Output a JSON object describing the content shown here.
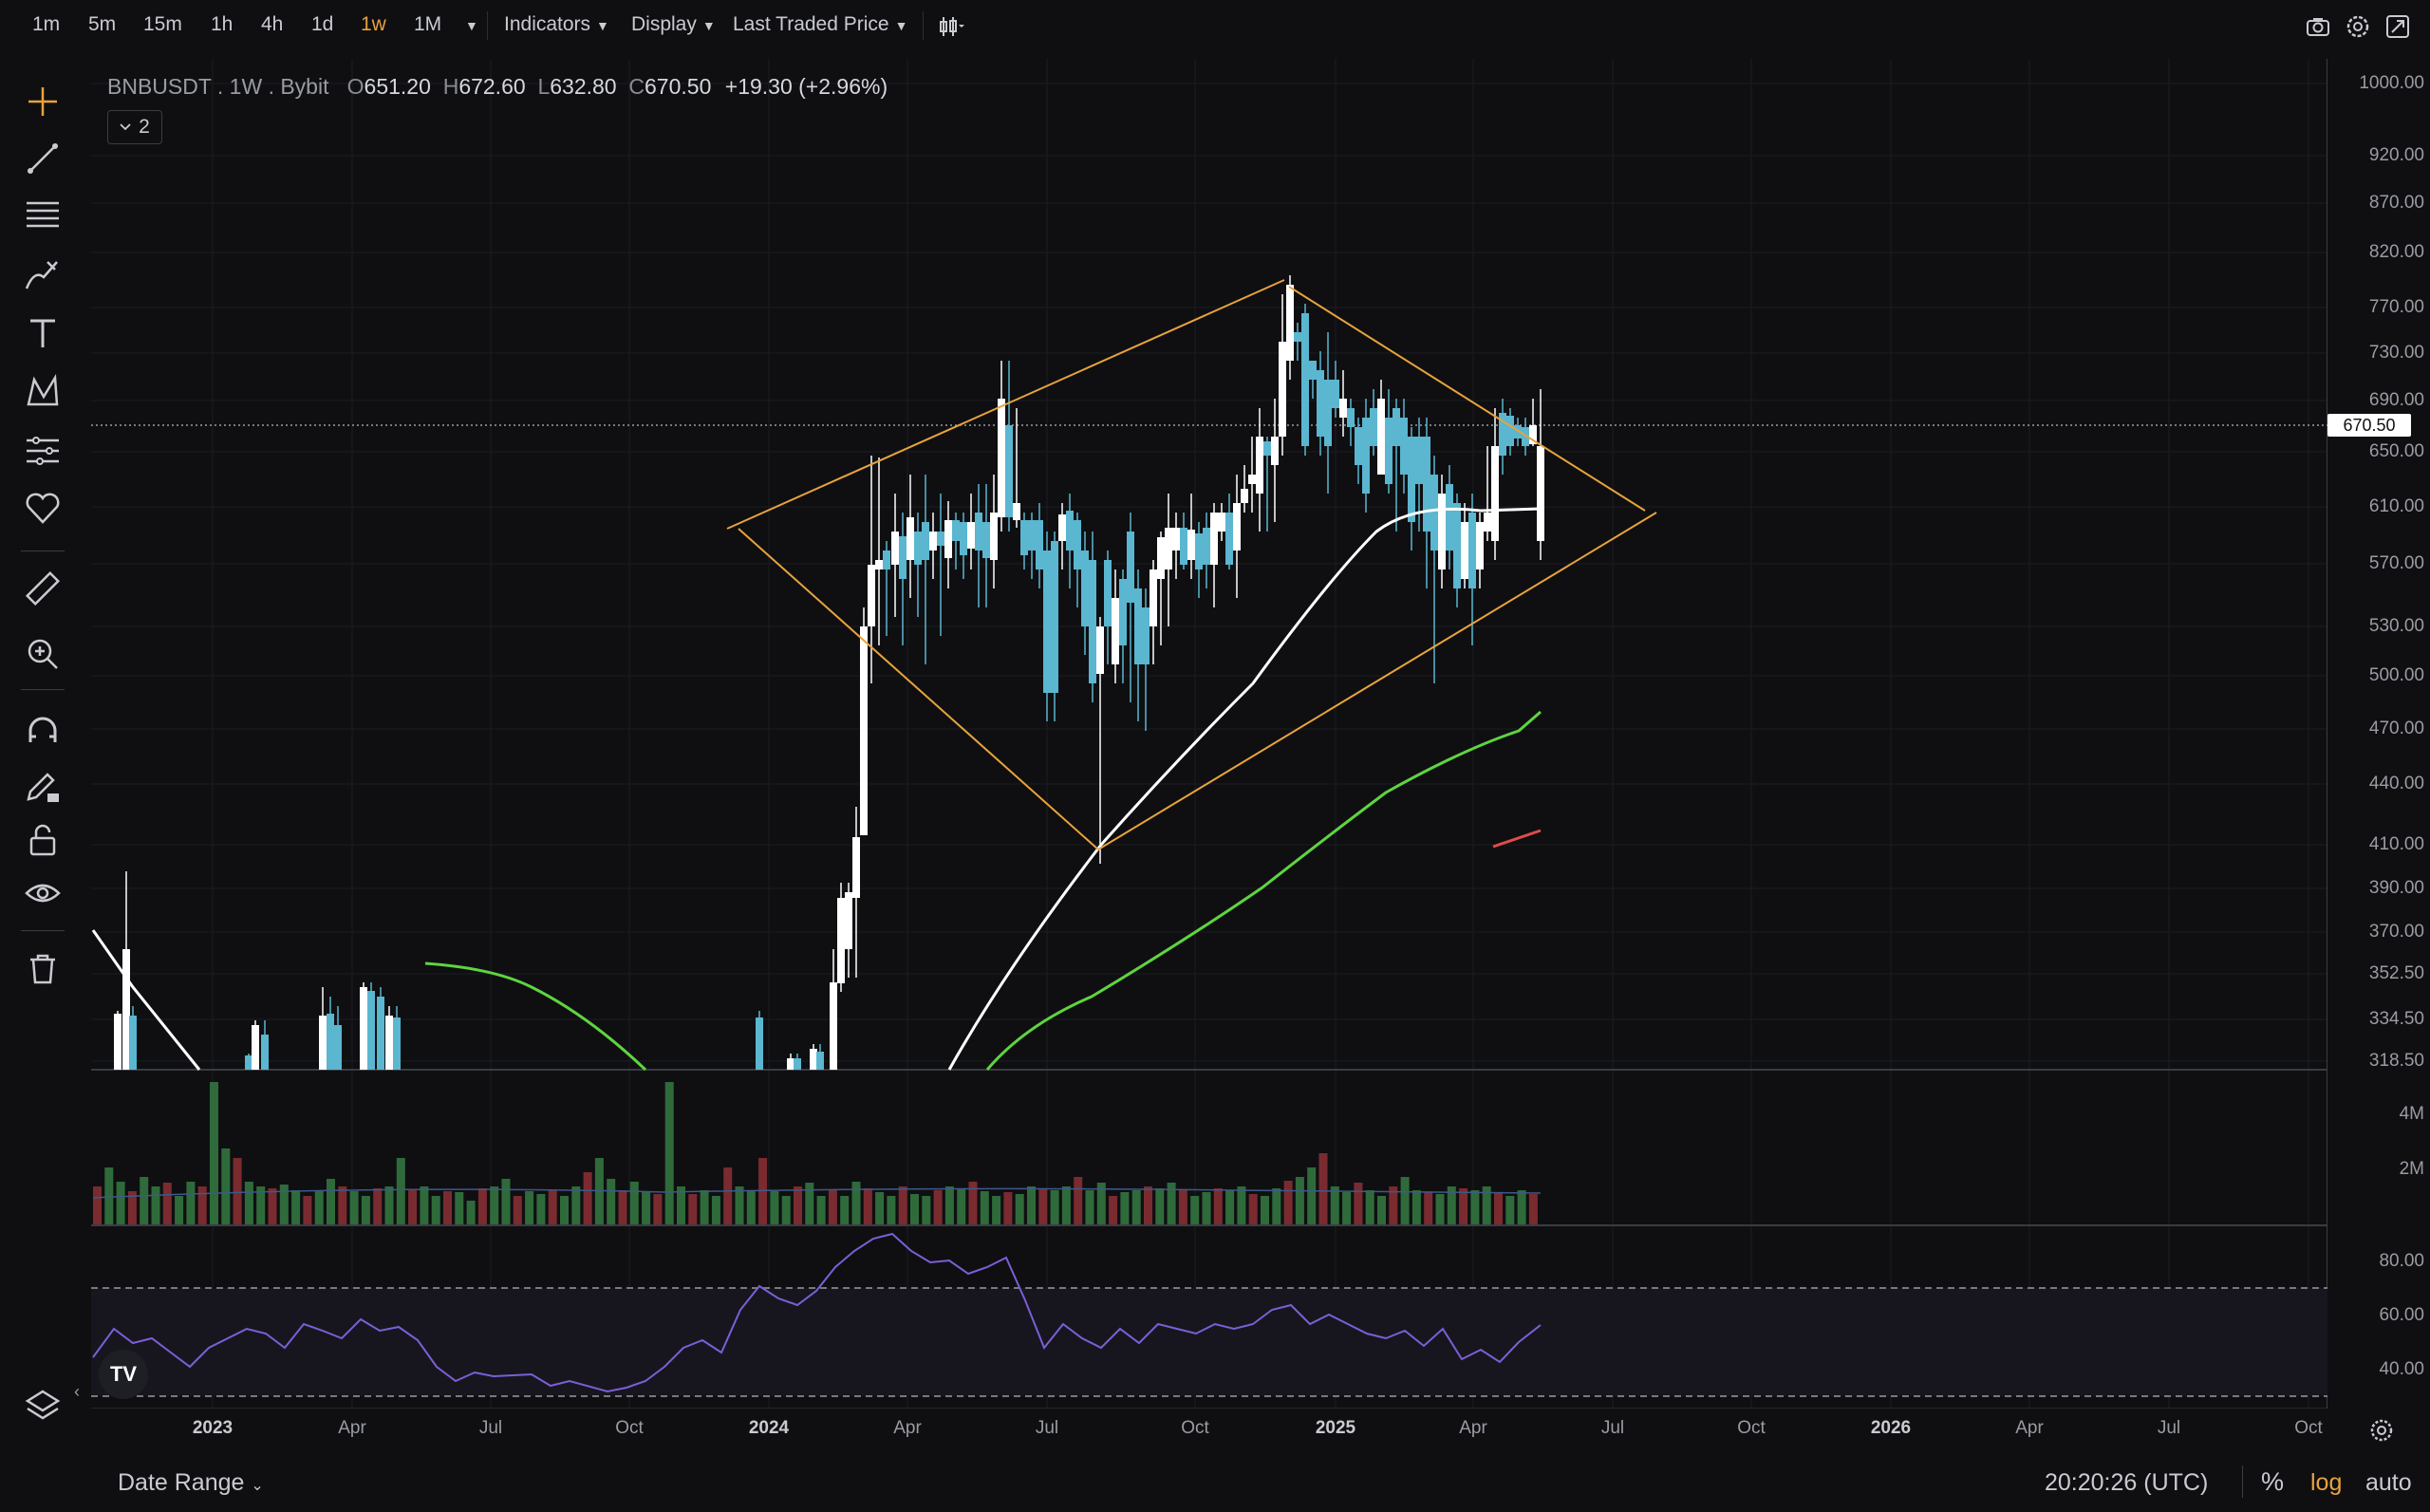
{
  "toolbar": {
    "timeframes": [
      "1m",
      "5m",
      "15m",
      "1h",
      "4h",
      "1d",
      "1w",
      "1M"
    ],
    "active_timeframe": "1w",
    "indicators_label": "Indicators",
    "display_label": "Display",
    "price_type_label": "Last Traded Price",
    "icons": [
      "chart-type-icon",
      "camera-icon",
      "settings-icon",
      "fullscreen-icon"
    ]
  },
  "left_tools": [
    "crosshair-icon",
    "trend-line-icon",
    "fib-icon",
    "brush-icon",
    "text-icon",
    "pattern-icon",
    "forecast-icon",
    "favorites-icon",
    "ruler-icon",
    "zoom-icon",
    "magnet-icon",
    "lock-draw-icon",
    "lock-icon",
    "eye-icon",
    "trash-icon",
    "layers-icon"
  ],
  "legend": {
    "symbol": "BNBUSDT",
    "interval": "1W",
    "exchange": "Bybit",
    "open_label": "O",
    "open": "651.20",
    "high_label": "H",
    "high": "672.60",
    "low_label": "L",
    "low": "632.80",
    "close_label": "C",
    "close": "670.50",
    "change": "+19.30 (+2.96%)",
    "collapsed_count": "2"
  },
  "price_axis": [
    "1000.00",
    "920.00",
    "870.00",
    "820.00",
    "770.00",
    "730.00",
    "690.00",
    "650.00",
    "610.00",
    "570.00",
    "530.00",
    "500.00",
    "470.00",
    "440.00",
    "410.00",
    "390.00",
    "370.00",
    "352.50",
    "334.50",
    "318.50"
  ],
  "current_price": "670.50",
  "volume_axis": [
    "4M",
    "2M"
  ],
  "rsi_axis": [
    "80.00",
    "60.00",
    "40.00"
  ],
  "time_axis": [
    {
      "label": "2023",
      "bold": true
    },
    {
      "label": "Apr",
      "bold": false
    },
    {
      "label": "Jul",
      "bold": false
    },
    {
      "label": "Oct",
      "bold": false
    },
    {
      "label": "2024",
      "bold": true
    },
    {
      "label": "Apr",
      "bold": false
    },
    {
      "label": "Jul",
      "bold": false
    },
    {
      "label": "Oct",
      "bold": false
    },
    {
      "label": "2025",
      "bold": true
    },
    {
      "label": "Apr",
      "bold": false
    },
    {
      "label": "Jul",
      "bold": false
    },
    {
      "label": "Oct",
      "bold": false
    },
    {
      "label": "2026",
      "bold": true
    },
    {
      "label": "Apr",
      "bold": false
    },
    {
      "label": "Jul",
      "bold": false
    },
    {
      "label": "Oct",
      "bold": false
    }
  ],
  "bottom_bar": {
    "date_range_label": "Date Range",
    "clock": "20:20:26 (UTC)",
    "percent_label": "%",
    "log_label": "log",
    "auto_label": "auto"
  },
  "colors": {
    "up": "#ffffff",
    "down": "#5bb6d0",
    "accent": "#e8a33c",
    "ma_white": "#ffffff",
    "ma_green": "#5fd43f",
    "ma_red": "#e04b4b",
    "rsi": "#7b5fd6",
    "vol_up": "#2f6b3a",
    "vol_down": "#7a2b30"
  }
}
